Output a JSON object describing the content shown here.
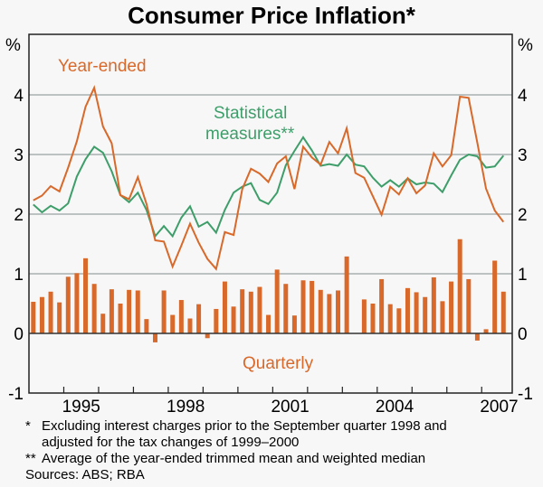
{
  "chart_data": {
    "type": "bar+line",
    "title": "Consumer Price Inflation*",
    "ylabel_left": "%",
    "ylabel_right": "%",
    "ylim": [
      -1,
      5
    ],
    "yticks": [
      -1,
      0,
      1,
      2,
      3,
      4
    ],
    "xtick_labels": [
      "1995",
      "1998",
      "2001",
      "2004",
      "2007"
    ],
    "x_start": "1994 Q1",
    "grid": true,
    "colors": {
      "orange": "#d8692a",
      "green": "#3e9e6a"
    },
    "annotations": {
      "year_ended": "Year-ended",
      "statistical_1": "Statistical",
      "statistical_2": "measures**",
      "quarterly": "Quarterly"
    },
    "series": [
      {
        "name": "Quarterly",
        "type": "bar",
        "values": [
          0.53,
          0.61,
          0.7,
          0.52,
          0.95,
          1.01,
          1.26,
          0.83,
          0.33,
          0.74,
          0.5,
          0.73,
          0.72,
          0.24,
          -0.15,
          0.72,
          0.31,
          0.56,
          0.25,
          0.49,
          -0.08,
          0.41,
          0.87,
          0.45,
          0.74,
          0.7,
          0.78,
          0.31,
          1.07,
          0.83,
          0.3,
          0.89,
          0.88,
          0.73,
          0.66,
          0.72,
          1.29,
          0.0,
          0.57,
          0.5,
          0.91,
          0.49,
          0.42,
          0.76,
          0.69,
          0.61,
          0.94,
          0.54,
          0.87,
          1.58,
          0.91,
          -0.12,
          0.07,
          1.22,
          0.7
        ]
      },
      {
        "name": "Year-ended",
        "type": "line",
        "values": [
          2.23,
          2.31,
          2.47,
          2.38,
          2.78,
          3.22,
          3.8,
          4.12,
          3.47,
          3.19,
          2.32,
          2.25,
          2.62,
          2.17,
          1.56,
          1.54,
          1.12,
          1.47,
          1.84,
          1.52,
          1.25,
          1.08,
          1.7,
          1.65,
          2.42,
          2.76,
          2.68,
          2.54,
          2.85,
          2.97,
          2.42,
          3.13,
          2.95,
          2.83,
          3.21,
          3.02,
          3.44,
          2.69,
          2.61,
          2.3,
          1.99,
          2.46,
          2.33,
          2.6,
          2.35,
          2.48,
          3.02,
          2.8,
          2.99,
          3.97,
          3.95,
          3.2,
          2.43,
          2.06,
          1.87
        ]
      },
      {
        "name": "Statistical measures",
        "type": "line",
        "values": [
          2.16,
          2.03,
          2.14,
          2.06,
          2.18,
          2.63,
          2.92,
          3.13,
          3.03,
          2.72,
          2.32,
          2.2,
          2.36,
          2.07,
          1.63,
          1.8,
          1.63,
          1.94,
          2.13,
          1.79,
          1.87,
          1.69,
          2.07,
          2.36,
          2.46,
          2.52,
          2.24,
          2.17,
          2.36,
          2.82,
          3.06,
          3.29,
          3.07,
          2.81,
          2.84,
          2.81,
          3.0,
          2.83,
          2.8,
          2.61,
          2.46,
          2.57,
          2.46,
          2.6,
          2.5,
          2.53,
          2.51,
          2.37,
          2.65,
          2.91,
          3.0,
          2.97,
          2.78,
          2.8,
          2.98
        ]
      }
    ]
  },
  "footnotes": [
    {
      "mark": "*",
      "text": "Excluding interest charges prior to the September quarter 1998 and"
    },
    {
      "mark": "",
      "text": "adjusted for the tax changes of 1999–2000"
    },
    {
      "mark": "**",
      "text": "Average of the year-ended trimmed mean and weighted median"
    }
  ],
  "sources": "Sources: ABS; RBA"
}
